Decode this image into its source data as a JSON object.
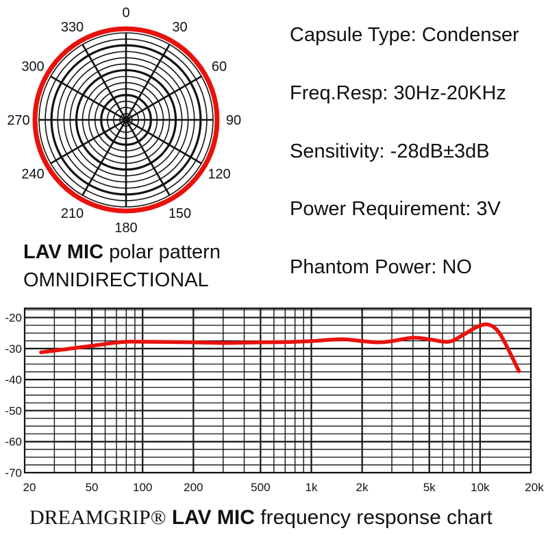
{
  "specs": {
    "capsule": "Capsule Type: Condenser",
    "freq": "Freq.Resp: 30Hz-20KHz",
    "sensitivity": "Sensitivity: -28dB±3dB",
    "power": "Power Requirement: 3V",
    "phantom": "Phantom Power: NO"
  },
  "polar_caption": {
    "bold": "LAV MIC",
    "rest": " polar pattern",
    "line2": "OMNIDIRECTIONAL"
  },
  "bottom_title": {
    "brand": "DREAMGRIP®",
    "bold": "LAV MIC",
    "rest": "frequency response chart"
  },
  "colors": {
    "accent": "#e8120c",
    "grid": "#111111"
  },
  "chart_data": [
    {
      "type": "polar",
      "pattern": "omnidirectional",
      "angle_labels": [
        "0",
        "30",
        "60",
        "90",
        "120",
        "150",
        "180",
        "210",
        "240",
        "270",
        "300",
        "330"
      ],
      "angles_deg": [
        0,
        30,
        60,
        90,
        120,
        150,
        180,
        210,
        240,
        270,
        300,
        330
      ],
      "response": [
        1,
        1,
        1,
        1,
        1,
        1,
        1,
        1,
        1,
        1,
        1,
        1
      ]
    },
    {
      "type": "line",
      "x_scale": "log",
      "xlim": [
        20,
        20000
      ],
      "ylim": [
        -70,
        -17
      ],
      "x_tick_values": [
        20,
        50,
        100,
        200,
        500,
        1000,
        2000,
        5000,
        10000,
        20000
      ],
      "x_tick_labels": [
        "20",
        "50",
        "100",
        "200",
        "500",
        "1k",
        "2k",
        "5k",
        "10k",
        "20k"
      ],
      "y_tick_values": [
        -20,
        -30,
        -40,
        -50,
        -60,
        -70
      ],
      "y_tick_labels": [
        "-20",
        "-30",
        "-40",
        "-50",
        "-60",
        "-70"
      ],
      "grid": true,
      "series": [
        {
          "x": [
            25,
            35,
            50,
            75,
            100,
            200,
            300,
            500,
            700,
            1000,
            1500,
            2000,
            2500,
            3000,
            4000,
            5000,
            6500,
            8000,
            9500,
            11000,
            12500,
            14000,
            17000
          ],
          "y": [
            -31.2,
            -30.2,
            -29.1,
            -27.9,
            -27.8,
            -28.0,
            -28.2,
            -28.0,
            -27.9,
            -27.6,
            -27.0,
            -27.6,
            -28.0,
            -27.6,
            -26.5,
            -27.0,
            -27.8,
            -25.5,
            -23.1,
            -22.2,
            -23.8,
            -28.0,
            -37.3
          ]
        }
      ]
    }
  ]
}
